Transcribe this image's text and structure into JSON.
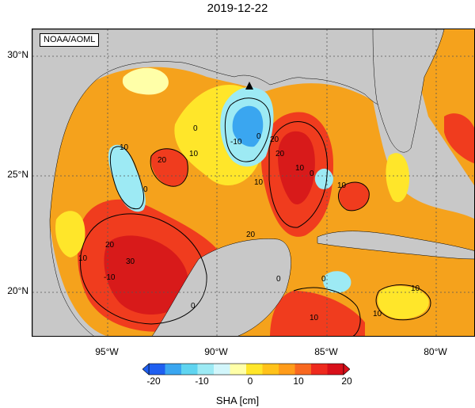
{
  "title": "2019-12-22",
  "credit": "NOAA/AOML",
  "lat_labels": [
    "30°N",
    "25°N",
    "20°N"
  ],
  "lon_labels": [
    "95°W",
    "90°W",
    "85°W",
    "80°W"
  ],
  "contour_labels": [
    "10",
    "20",
    "0",
    "10",
    "0",
    "-10",
    "0",
    "10",
    "20",
    "10",
    "20",
    "0",
    "10",
    "10",
    "20",
    "30",
    "20",
    "0",
    "-10",
    "10",
    "10",
    "0",
    "0",
    "10"
  ],
  "colorbar": {
    "ticks": [
      "-20",
      "-10",
      "0",
      "10",
      "20"
    ],
    "label": "SHA [cm]",
    "colors": [
      "#1f5ff0",
      "#3aa6f0",
      "#5fd4f0",
      "#9deaf4",
      "#d2f6fb",
      "#ffffa8",
      "#ffe62a",
      "#ffc21a",
      "#ff9c1a",
      "#f86820",
      "#ee2a1e",
      "#d8101a"
    ]
  },
  "palette": {
    "land": "#c8c8c8",
    "ocean_warm": "#f5a21c",
    "high": "#f03c1e",
    "very_high": "#d81a1a",
    "yellow": "#ffe62a",
    "light": "#ffffa8",
    "cyan": "#9deaf4",
    "blue": "#3aa6f0"
  }
}
